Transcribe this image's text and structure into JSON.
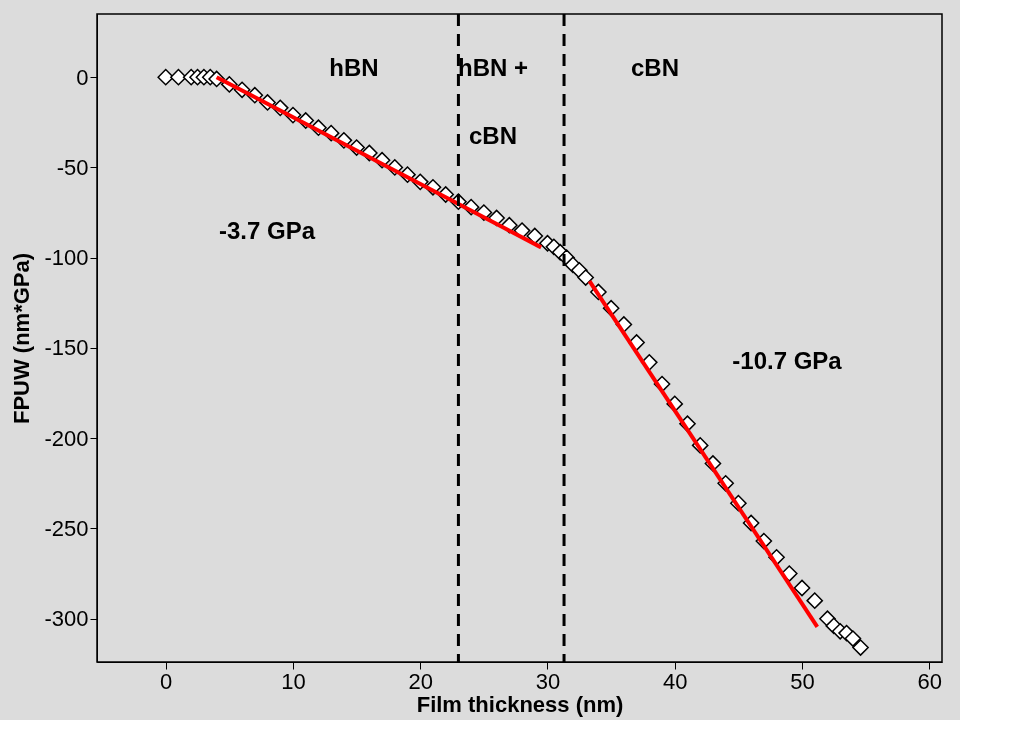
{
  "chart_data": {
    "type": "scatter",
    "xlabel": "Film thickness (nm)",
    "ylabel": "FPUW (nm*GPa)",
    "xlim": [
      -5.4,
      61
    ],
    "ylim": [
      -324,
      35
    ],
    "xticks": [
      0,
      10,
      20,
      30,
      40,
      50,
      60
    ],
    "yticks": [
      0,
      -50,
      -100,
      -150,
      -200,
      -250,
      -300
    ],
    "marker": "diamond",
    "series": [
      {
        "color": "#000000",
        "x": [
          0,
          1,
          2,
          2.5,
          3,
          3.5,
          4,
          5,
          6,
          7,
          8,
          9,
          10,
          11,
          12,
          13,
          14,
          15,
          16,
          17,
          18,
          19,
          20,
          21,
          22,
          23,
          24,
          25,
          26,
          27,
          28,
          29,
          30,
          30.5,
          31,
          31.5,
          32,
          32.5,
          33,
          34,
          35,
          36,
          37,
          38,
          39,
          40,
          41,
          42,
          43,
          44,
          45,
          46,
          47,
          48,
          49,
          50,
          51,
          52,
          52.5,
          53,
          53.5,
          54,
          54.6
        ],
        "values": [
          0,
          0,
          0,
          0,
          0,
          0,
          -1,
          -4,
          -7,
          -10,
          -14,
          -17,
          -21,
          -24,
          -28,
          -31,
          -35,
          -39,
          -42,
          -46,
          -50,
          -54,
          -58,
          -61,
          -65,
          -69,
          -72,
          -75,
          -78,
          -82,
          -85,
          -88,
          -92,
          -94,
          -97,
          -100,
          -104,
          -107,
          -111,
          -119,
          -128,
          -137,
          -147,
          -158,
          -170,
          -181,
          -192,
          -204,
          -214,
          -225,
          -236,
          -247,
          -257,
          -266,
          -275,
          -283,
          -290,
          -300,
          -304,
          -307,
          -308,
          -311,
          -316
        ]
      },
      {
        "type": "line",
        "color": "#ff0000",
        "marker": "none",
        "line_style": "solid",
        "x": [
          4,
          29.5
        ],
        "values": [
          0,
          -94.3
        ]
      },
      {
        "type": "line",
        "color": "#ff0000",
        "marker": "none",
        "line_style": "solid",
        "x": [
          33.3,
          51.2
        ],
        "values": [
          -113,
          -304.5
        ]
      }
    ],
    "ref_lines": [
      {
        "axis": "x",
        "value": 23,
        "line_style": "dashed",
        "color": "#000000"
      },
      {
        "axis": "x",
        "value": 31.3,
        "line_style": "dashed",
        "color": "#000000"
      }
    ],
    "annotations": [
      "hBN",
      "hBN +",
      "cBN",
      "cBN",
      "-3.7 GPa",
      "-10.7 GPa"
    ]
  }
}
